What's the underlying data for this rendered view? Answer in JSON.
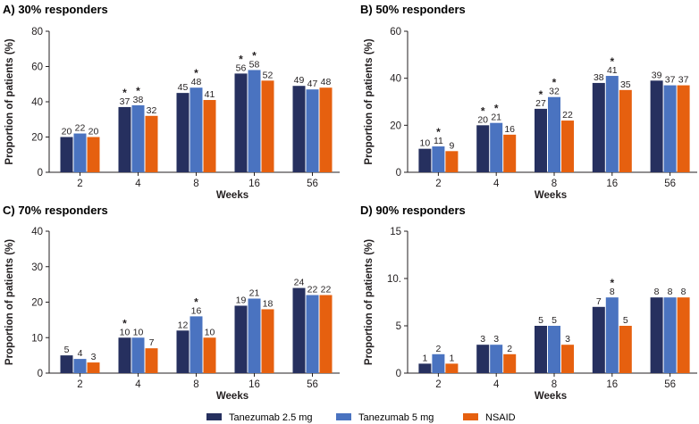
{
  "colors": {
    "tanezumab_2_5": "#26305f",
    "tanezumab_5": "#4a73c0",
    "nsaid": "#e6600f",
    "axis": "#231f20"
  },
  "legend": {
    "items": [
      {
        "label": "Tanezumab 2.5 mg",
        "color_key": "tanezumab_2_5"
      },
      {
        "label": "Tanezumab 5 mg",
        "color_key": "tanezumab_5"
      },
      {
        "label": "NSAID",
        "color_key": "nsaid"
      }
    ]
  },
  "chart_data": [
    {
      "type": "bar",
      "title": "A) 30% responders",
      "xlabel": "Weeks",
      "ylabel": "Proportion of patients (%)",
      "ylim": [
        0,
        80
      ],
      "yticks": [
        0,
        20,
        40,
        60,
        80
      ],
      "categories": [
        "2",
        "4",
        "8",
        "16",
        "56"
      ],
      "series": [
        {
          "name": "Tanezumab 2.5 mg",
          "values": [
            20,
            37,
            45,
            56,
            49
          ],
          "significant": [
            false,
            true,
            false,
            true,
            false
          ]
        },
        {
          "name": "Tanezumab 5 mg",
          "values": [
            22,
            38,
            48,
            58,
            47
          ],
          "significant": [
            false,
            true,
            true,
            true,
            false
          ]
        },
        {
          "name": "NSAID",
          "values": [
            20,
            32,
            41,
            52,
            48
          ],
          "significant": [
            false,
            false,
            false,
            false,
            false
          ]
        }
      ]
    },
    {
      "type": "bar",
      "title": "B) 50% responders",
      "xlabel": "Weeks",
      "ylabel": "Proportion of patients (%)",
      "ylim": [
        0,
        60
      ],
      "yticks": [
        0,
        20,
        40,
        60
      ],
      "categories": [
        "2",
        "4",
        "8",
        "16",
        "56"
      ],
      "series": [
        {
          "name": "Tanezumab 2.5 mg",
          "values": [
            10,
            20,
            27,
            38,
            39
          ],
          "significant": [
            false,
            true,
            true,
            false,
            false
          ]
        },
        {
          "name": "Tanezumab 5 mg",
          "values": [
            11,
            21,
            32,
            41,
            37
          ],
          "significant": [
            true,
            true,
            true,
            true,
            false
          ]
        },
        {
          "name": "NSAID",
          "values": [
            9,
            16,
            22,
            35,
            37
          ],
          "significant": [
            false,
            false,
            false,
            false,
            false
          ]
        }
      ]
    },
    {
      "type": "bar",
      "title": "C) 70% responders",
      "xlabel": "Weeks",
      "ylabel": "Proportion of patients (%)",
      "ylim": [
        0,
        40
      ],
      "yticks": [
        0,
        10,
        20,
        30,
        40
      ],
      "categories": [
        "2",
        "4",
        "8",
        "16",
        "56"
      ],
      "series": [
        {
          "name": "Tanezumab 2.5 mg",
          "values": [
            5,
            10,
            12,
            19,
            24
          ],
          "significant": [
            false,
            true,
            false,
            false,
            false
          ]
        },
        {
          "name": "Tanezumab 5 mg",
          "values": [
            4,
            10,
            16,
            21,
            22
          ],
          "significant": [
            false,
            false,
            true,
            false,
            false
          ]
        },
        {
          "name": "NSAID",
          "values": [
            3,
            7,
            10,
            18,
            22
          ],
          "significant": [
            false,
            false,
            false,
            false,
            false
          ]
        }
      ]
    },
    {
      "type": "bar",
      "title": "D) 90% responders",
      "xlabel": "Weeks",
      "ylabel": "Proportion of patients (%)",
      "ylim": [
        0,
        15
      ],
      "yticks": [
        0,
        5,
        10,
        15
      ],
      "ytick_labels": [
        "0",
        "5",
        "10.",
        "15"
      ],
      "categories": [
        "2",
        "4",
        "8",
        "16",
        "56"
      ],
      "series": [
        {
          "name": "Tanezumab 2.5 mg",
          "values": [
            1,
            3,
            5,
            7,
            8
          ],
          "significant": [
            false,
            false,
            false,
            false,
            false
          ]
        },
        {
          "name": "Tanezumab 5 mg",
          "values": [
            2,
            3,
            5,
            8,
            8
          ],
          "significant": [
            false,
            false,
            false,
            true,
            false
          ]
        },
        {
          "name": "NSAID",
          "values": [
            1,
            2,
            3,
            5,
            8
          ],
          "significant": [
            false,
            false,
            false,
            false,
            false
          ]
        }
      ]
    }
  ]
}
